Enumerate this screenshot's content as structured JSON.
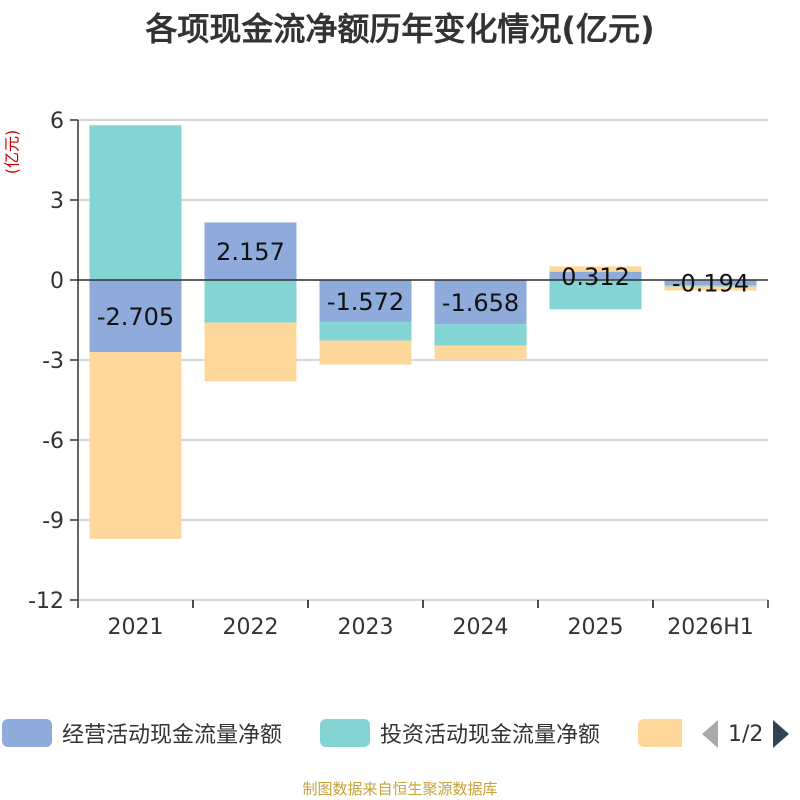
{
  "title": "各项现金流净额历年变化情况(亿元)",
  "unit_label": "(亿元)",
  "source": "制图数据来自恒生聚源数据库",
  "legend": {
    "items": [
      {
        "label": "经营活动现金流量净额",
        "color": "#8fabdc"
      },
      {
        "label": "投资活动现金流量净额",
        "color": "#84d4d4"
      },
      {
        "label": "",
        "color": "#fdd89a"
      }
    ],
    "page": "1/2"
  },
  "chart_data": {
    "type": "bar",
    "stacked": true,
    "categories": [
      "2021",
      "2022",
      "2023",
      "2024",
      "2025",
      "2026H1"
    ],
    "ylim": [
      -12,
      6
    ],
    "yticks": [
      6,
      3,
      0,
      -3,
      -6,
      -9,
      -12
    ],
    "ytick_labels": [
      "6",
      "3",
      "0",
      "-3",
      "-6",
      "-9",
      "-12"
    ],
    "grid": true,
    "series": [
      {
        "name": "经营活动现金流量净额",
        "color": "#8fabdc",
        "values": [
          -2.705,
          2.157,
          -1.572,
          -1.658,
          0.312,
          -0.194
        ],
        "labels": [
          "-2.705",
          "2.157",
          "-1.572",
          "-1.658",
          "0.312",
          "-0.194"
        ]
      },
      {
        "name": "投资活动现金流量净额",
        "color": "#84d4d4",
        "values": [
          5.8,
          -1.6,
          -0.7,
          -0.8,
          -1.1,
          -0.05
        ]
      },
      {
        "color": "#fdd89a",
        "values": [
          -7.0,
          -2.2,
          -0.9,
          -0.5,
          0.2,
          -0.15
        ]
      }
    ]
  }
}
